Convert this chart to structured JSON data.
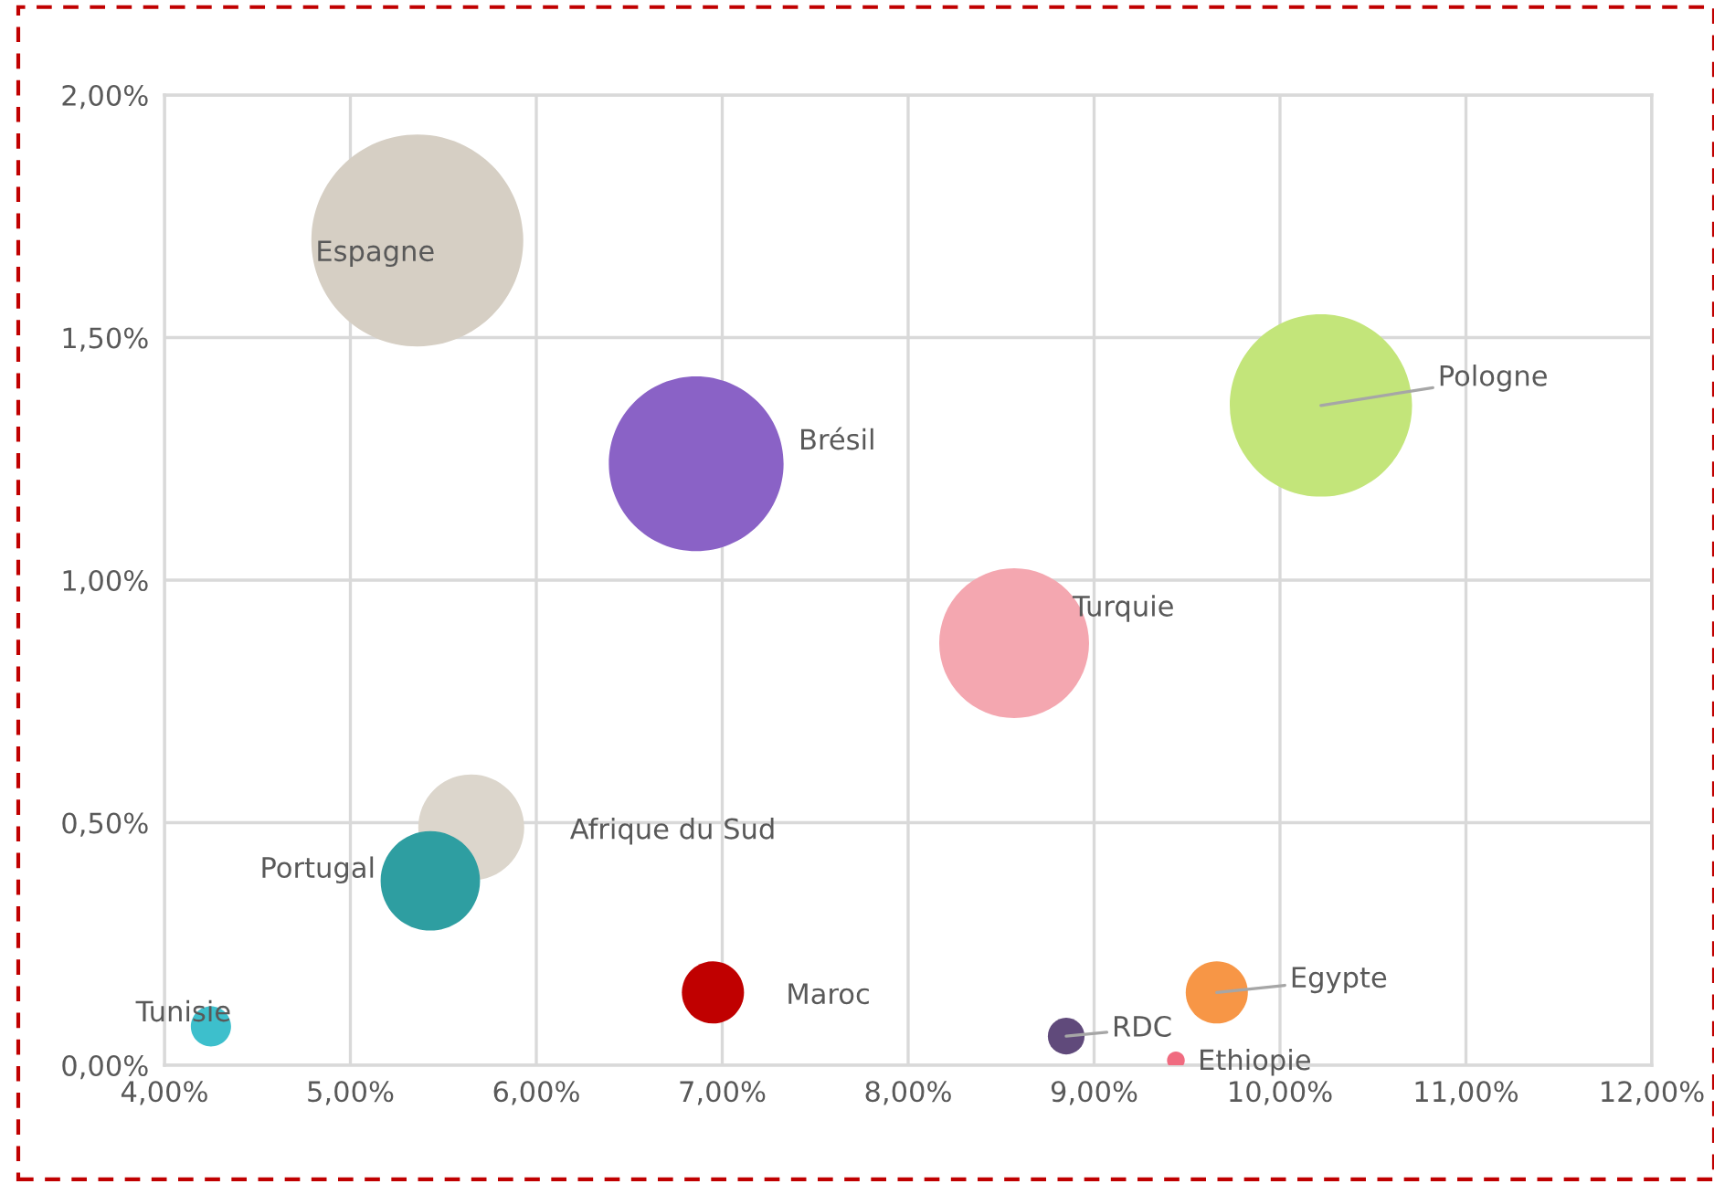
{
  "chart_data": {
    "type": "bubble",
    "series": [
      {
        "name": "Espagne",
        "color": "#d6cfc4",
        "x": [
          5.36
        ],
        "values": [
          1.7
        ],
        "sizes": [
          1
        ]
      },
      {
        "name": "Brésil",
        "color": "#8a62c6",
        "x": [
          6.86
        ],
        "values": [
          1.24
        ],
        "sizes": [
          0.68
        ]
      },
      {
        "name": "Pologne",
        "color": "#c3e57a",
        "x": [
          10.22
        ],
        "values": [
          1.36
        ],
        "sizes": [
          0.74
        ]
      },
      {
        "name": "Turquie",
        "color": "#f4a7b0",
        "x": [
          8.57
        ],
        "values": [
          0.87
        ],
        "sizes": [
          0.5
        ]
      },
      {
        "name": "Afrique du Sud",
        "color": "#dcd6cc",
        "x": [
          5.65
        ],
        "values": [
          0.49
        ],
        "sizes": [
          0.25
        ]
      },
      {
        "name": "Portugal",
        "color": "#2e9ea1",
        "x": [
          5.43
        ],
        "values": [
          0.38
        ],
        "sizes": [
          0.22
        ]
      },
      {
        "name": "Tunisie",
        "color": "#3dbfcc",
        "x": [
          4.25
        ],
        "values": [
          0.08
        ],
        "sizes": [
          0.036
        ]
      },
      {
        "name": "Maroc",
        "color": "#c00000",
        "x": [
          6.95
        ],
        "values": [
          0.15
        ],
        "sizes": [
          0.086
        ]
      },
      {
        "name": "RDC",
        "color": "#604a7b",
        "x": [
          8.85
        ],
        "values": [
          0.06
        ],
        "sizes": [
          0.03
        ]
      },
      {
        "name": "Egypte",
        "color": "#f79646",
        "x": [
          9.66
        ],
        "values": [
          0.15
        ],
        "sizes": [
          0.086
        ]
      },
      {
        "name": "Ethiopie",
        "color": "#f06b80",
        "x": [
          9.44
        ],
        "values": [
          0.01
        ],
        "sizes": [
          0.007
        ]
      }
    ],
    "xlim": [
      4,
      12
    ],
    "xticks": [
      {
        "value": 4,
        "label": "4,00%"
      },
      {
        "value": 5,
        "label": "5,00%"
      },
      {
        "value": 6,
        "label": "6,00%"
      },
      {
        "value": 7,
        "label": "7,00%"
      },
      {
        "value": 8,
        "label": "8,00%"
      },
      {
        "value": 9,
        "label": "9,00%"
      },
      {
        "value": 10,
        "label": "10,00%"
      },
      {
        "value": 11,
        "label": "11,00%"
      },
      {
        "value": 12,
        "label": "12,00%"
      }
    ],
    "ylim": [
      0,
      2
    ],
    "yticks": [
      {
        "value": 0,
        "label": "0,00%"
      },
      {
        "value": 0.5,
        "label": "0,50%"
      },
      {
        "value": 1,
        "label": "1,00%"
      },
      {
        "value": 1.5,
        "label": "1,50%"
      },
      {
        "value": 2,
        "label": "2,00%"
      }
    ],
    "grid": true,
    "legend": false
  }
}
